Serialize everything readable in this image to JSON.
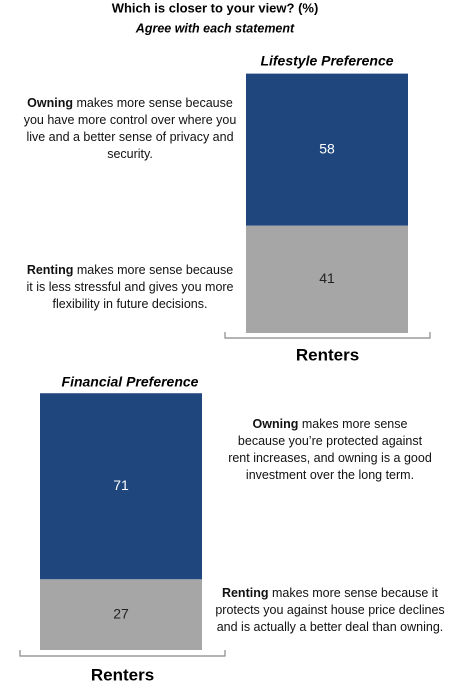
{
  "title": "Which is closer to your view? (%)",
  "subtitle": "Agree with each statement",
  "chart_data": [
    {
      "type": "stacked_bar",
      "title": "Lifestyle Preference",
      "categories": [
        "Renters"
      ],
      "series": [
        {
          "name": "Owning",
          "description": "makes more sense because you have more control over where you live and a better sense of privacy and security.",
          "color": "#1f477d",
          "label_color": "#ffffff",
          "values": [
            58
          ]
        },
        {
          "name": "Renting",
          "description": "makes more sense because it is less stressful and gives you more flexibility in future decisions.",
          "color": "#a6a6a6",
          "label_color": "#222222",
          "values": [
            41
          ]
        }
      ]
    },
    {
      "type": "stacked_bar",
      "title": "Financial Preference",
      "categories": [
        "Renters"
      ],
      "series": [
        {
          "name": "Owning",
          "description": "makes more sense because you’re protected against rent increases, and owning is a good investment over the long term.",
          "color": "#1f477d",
          "label_color": "#ffffff",
          "values": [
            71
          ]
        },
        {
          "name": "Renting",
          "description": "makes more sense because it protects you against house price declines and is actually a better deal than owning.",
          "color": "#a6a6a6",
          "label_color": "#222222",
          "values": [
            27
          ]
        }
      ]
    }
  ]
}
